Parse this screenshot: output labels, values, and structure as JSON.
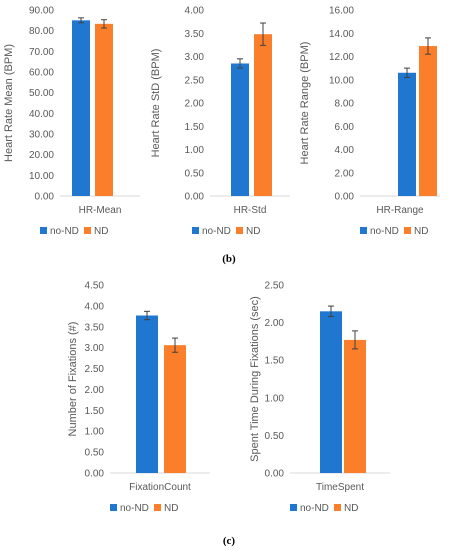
{
  "colors": {
    "no_nd": "#1f77d0",
    "nd": "#fb7e2b",
    "axis": "#d9d9d9",
    "text": "#595959",
    "err": "#404040"
  },
  "panel_labels": [
    "(b)",
    "(c)"
  ],
  "chart_data": [
    {
      "type": "bar",
      "categories": [
        "HR-Mean"
      ],
      "ylabel": "Heart Rate Mean (BPM)",
      "ylim": [
        0,
        90
      ],
      "yticks": [
        "0.00",
        "10.00",
        "20.00",
        "30.00",
        "40.00",
        "50.00",
        "60.00",
        "70.00",
        "80.00",
        "90.00"
      ],
      "series": [
        {
          "name": "no-ND",
          "values": [
            85.0
          ],
          "error": [
            1.2
          ]
        },
        {
          "name": "ND",
          "values": [
            83.3
          ],
          "error": [
            2.0
          ]
        }
      ],
      "legend": "bottom"
    },
    {
      "type": "bar",
      "categories": [
        "HR-Std"
      ],
      "ylabel": "Heart Rate StD (BPM)",
      "ylim": [
        0,
        4
      ],
      "yticks": [
        "0.00",
        "0.50",
        "1.00",
        "1.50",
        "2.00",
        "2.50",
        "3.00",
        "3.50",
        "4.00"
      ],
      "series": [
        {
          "name": "no-ND",
          "values": [
            2.85
          ],
          "error": [
            0.1
          ]
        },
        {
          "name": "ND",
          "values": [
            3.48
          ],
          "error": [
            0.24
          ]
        }
      ],
      "legend": "bottom"
    },
    {
      "type": "bar",
      "categories": [
        "HR-Range"
      ],
      "ylabel": "Heart Rate Range (BPM)",
      "ylim": [
        0,
        16
      ],
      "yticks": [
        "0.00",
        "2.00",
        "4.00",
        "6.00",
        "8.00",
        "10.00",
        "12.00",
        "14.00",
        "16.00"
      ],
      "series": [
        {
          "name": "no-ND",
          "values": [
            10.6
          ],
          "error": [
            0.4
          ]
        },
        {
          "name": "ND",
          "values": [
            12.9
          ],
          "error": [
            0.7
          ]
        }
      ],
      "legend": "bottom"
    },
    {
      "type": "bar",
      "categories": [
        "FixationCount"
      ],
      "ylabel": "Number of Fixations (#)",
      "ylim": [
        0,
        4.5
      ],
      "yticks": [
        "0.00",
        "0.50",
        "1.00",
        "1.50",
        "2.00",
        "2.50",
        "3.00",
        "3.50",
        "4.00",
        "4.50"
      ],
      "series": [
        {
          "name": "no-ND",
          "values": [
            3.77
          ],
          "error": [
            0.1
          ]
        },
        {
          "name": "ND",
          "values": [
            3.06
          ],
          "error": [
            0.17
          ]
        }
      ],
      "legend": "bottom"
    },
    {
      "type": "bar",
      "categories": [
        "TimeSpent"
      ],
      "ylabel": "Spent Time During Fixations (sec)",
      "ylim": [
        0,
        2.5
      ],
      "yticks": [
        "0.00",
        "0.50",
        "1.00",
        "1.50",
        "2.00",
        "2.50"
      ],
      "series": [
        {
          "name": "no-ND",
          "values": [
            2.15
          ],
          "error": [
            0.07
          ]
        },
        {
          "name": "ND",
          "values": [
            1.77
          ],
          "error": [
            0.12
          ]
        }
      ],
      "legend": "bottom"
    }
  ]
}
